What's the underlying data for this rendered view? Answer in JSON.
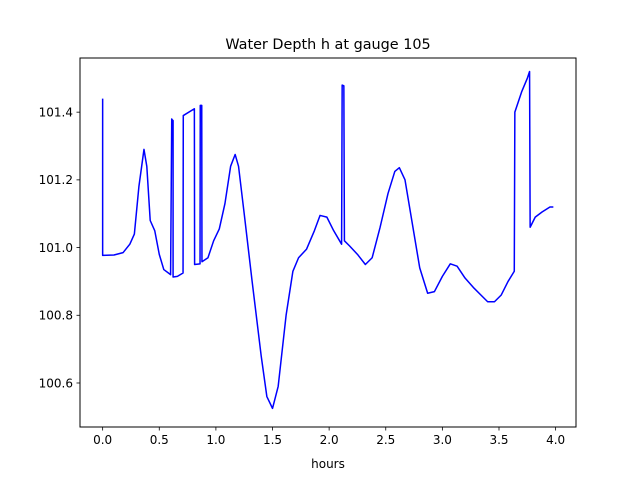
{
  "chart_data": {
    "type": "line",
    "title": "Water Depth h at gauge 105",
    "xlabel": "hours",
    "ylabel": "",
    "xlim": [
      -0.2,
      4.18
    ],
    "ylim": [
      100.47,
      101.56
    ],
    "x_ticks": [
      0.0,
      0.5,
      1.0,
      1.5,
      2.0,
      2.5,
      3.0,
      3.5,
      4.0
    ],
    "x_tick_labels": [
      "0.0",
      "0.5",
      "1.0",
      "1.5",
      "2.0",
      "2.5",
      "3.0",
      "3.5",
      "4.0"
    ],
    "y_ticks": [
      100.6,
      100.8,
      101.0,
      101.2,
      101.4
    ],
    "y_tick_labels": [
      "100.6",
      "100.8",
      "101.0",
      "101.2",
      "101.4"
    ],
    "grid": false,
    "legend": "none",
    "series": [
      {
        "color": "#0000ff",
        "points": [
          [
            0.0,
            101.44
          ],
          [
            0.0,
            100.977
          ],
          [
            0.1,
            100.978
          ],
          [
            0.18,
            100.985
          ],
          [
            0.24,
            101.01
          ],
          [
            0.28,
            101.04
          ],
          [
            0.32,
            101.18
          ],
          [
            0.365,
            101.29
          ],
          [
            0.39,
            101.24
          ],
          [
            0.42,
            101.08
          ],
          [
            0.46,
            101.05
          ],
          [
            0.5,
            100.98
          ],
          [
            0.54,
            100.935
          ],
          [
            0.6,
            100.92
          ],
          [
            0.61,
            101.38
          ],
          [
            0.615,
            101.377
          ],
          [
            0.622,
            101.375
          ],
          [
            0.622,
            100.913
          ],
          [
            0.66,
            100.915
          ],
          [
            0.71,
            100.925
          ],
          [
            0.712,
            101.39
          ],
          [
            0.81,
            101.41
          ],
          [
            0.812,
            100.95
          ],
          [
            0.86,
            100.952
          ],
          [
            0.862,
            101.42
          ],
          [
            0.875,
            101.42
          ],
          [
            0.877,
            100.958
          ],
          [
            0.93,
            100.97
          ],
          [
            0.98,
            101.02
          ],
          [
            1.03,
            101.055
          ],
          [
            1.08,
            101.13
          ],
          [
            1.13,
            101.24
          ],
          [
            1.17,
            101.275
          ],
          [
            1.2,
            101.24
          ],
          [
            1.25,
            101.1
          ],
          [
            1.32,
            100.9
          ],
          [
            1.4,
            100.68
          ],
          [
            1.45,
            100.56
          ],
          [
            1.5,
            100.525
          ],
          [
            1.55,
            100.59
          ],
          [
            1.62,
            100.8
          ],
          [
            1.68,
            100.93
          ],
          [
            1.73,
            100.97
          ],
          [
            1.8,
            100.995
          ],
          [
            1.87,
            101.05
          ],
          [
            1.92,
            101.095
          ],
          [
            1.98,
            101.09
          ],
          [
            2.04,
            101.05
          ],
          [
            2.11,
            101.01
          ],
          [
            2.115,
            101.48
          ],
          [
            2.13,
            101.478
          ],
          [
            2.135,
            101.02
          ],
          [
            2.18,
            101.005
          ],
          [
            2.25,
            100.98
          ],
          [
            2.32,
            100.95
          ],
          [
            2.38,
            100.97
          ],
          [
            2.45,
            101.06
          ],
          [
            2.52,
            101.16
          ],
          [
            2.58,
            101.225
          ],
          [
            2.62,
            101.236
          ],
          [
            2.67,
            101.2
          ],
          [
            2.73,
            101.08
          ],
          [
            2.8,
            100.94
          ],
          [
            2.87,
            100.865
          ],
          [
            2.93,
            100.87
          ],
          [
            3.0,
            100.915
          ],
          [
            3.07,
            100.952
          ],
          [
            3.13,
            100.945
          ],
          [
            3.2,
            100.91
          ],
          [
            3.28,
            100.88
          ],
          [
            3.34,
            100.86
          ],
          [
            3.4,
            100.84
          ],
          [
            3.46,
            100.84
          ],
          [
            3.52,
            100.86
          ],
          [
            3.58,
            100.9
          ],
          [
            3.635,
            100.93
          ],
          [
            3.64,
            101.4
          ],
          [
            3.7,
            101.46
          ],
          [
            3.75,
            101.5
          ],
          [
            3.77,
            101.52
          ],
          [
            3.775,
            101.06
          ],
          [
            3.82,
            101.09
          ],
          [
            3.88,
            101.105
          ],
          [
            3.95,
            101.12
          ],
          [
            3.98,
            101.12
          ]
        ]
      }
    ]
  }
}
